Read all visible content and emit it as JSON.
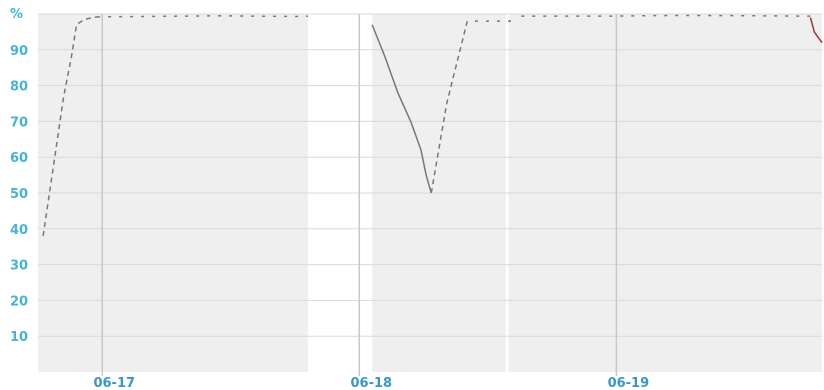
{
  "chart_data": {
    "type": "line",
    "ylabel": "%",
    "ylim": [
      0,
      100
    ],
    "yticks": [
      10,
      20,
      30,
      40,
      50,
      60,
      70,
      80,
      90
    ],
    "xlim": [
      0.0,
      3.05
    ],
    "xticks": [
      {
        "x": 0.25,
        "label": "06-17"
      },
      {
        "x": 1.25,
        "label": "06-18"
      },
      {
        "x": 2.25,
        "label": "06-19"
      }
    ],
    "grid": true,
    "shaded_spans": [
      [
        0.0,
        1.05
      ],
      [
        1.3,
        1.82
      ],
      [
        1.83,
        3.05
      ]
    ],
    "colors": {
      "shade": "#efefef",
      "grid": "#d9d9d9",
      "day_line": "#c8c8c8",
      "series": "#777777",
      "red_series": "#9a3a2a",
      "y_ticks": "#45b3d6",
      "x_ticks": "#3a96c8"
    },
    "series": [
      {
        "style": "dashed",
        "color": "series",
        "points": [
          [
            0.02,
            38
          ],
          [
            0.1,
            77
          ],
          [
            0.13,
            88
          ],
          [
            0.15,
            97
          ],
          [
            0.18,
            98.5
          ],
          [
            0.23,
            99.2
          ]
        ]
      },
      {
        "style": "dotted",
        "color": "series",
        "points": [
          [
            0.23,
            99.2
          ],
          [
            0.4,
            99.3
          ],
          [
            0.7,
            99.5
          ],
          [
            1.0,
            99.3
          ],
          [
            1.05,
            99.4
          ]
        ]
      },
      {
        "style": "solid",
        "color": "series",
        "points": [
          [
            1.3,
            97
          ],
          [
            1.35,
            88
          ],
          [
            1.4,
            78
          ],
          [
            1.45,
            70
          ],
          [
            1.49,
            62
          ],
          [
            1.51,
            55
          ],
          [
            1.53,
            50
          ]
        ]
      },
      {
        "style": "dashed",
        "color": "series",
        "points": [
          [
            1.53,
            50
          ],
          [
            1.59,
            75
          ],
          [
            1.67,
            98
          ]
        ]
      },
      {
        "style": "dotted",
        "color": "series",
        "points": [
          [
            1.7,
            98
          ],
          [
            1.85,
            98
          ]
        ]
      },
      {
        "style": "dotted",
        "color": "series",
        "points": [
          [
            1.88,
            99.4
          ],
          [
            2.2,
            99.4
          ],
          [
            2.5,
            99.6
          ],
          [
            2.8,
            99.5
          ],
          [
            3.01,
            99.4
          ]
        ]
      },
      {
        "style": "solid",
        "color": "red_series",
        "points": [
          [
            3.005,
            99
          ],
          [
            3.02,
            95
          ],
          [
            3.05,
            92
          ]
        ]
      }
    ]
  }
}
